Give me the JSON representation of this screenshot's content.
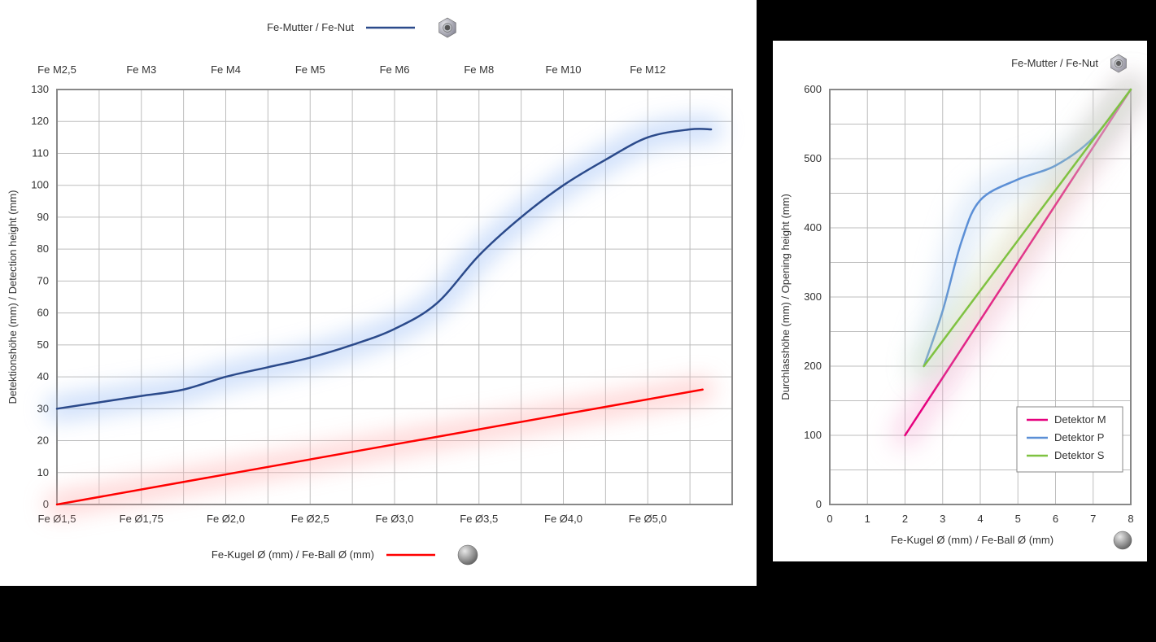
{
  "chart_left": {
    "type": "line",
    "top_legend_label": "Fe-Mutter / Fe-Nut",
    "bottom_legend_label": "Fe-Kugel Ø (mm) / Fe-Ball Ø (mm)",
    "y_axis_label": "Detektionshöhe (mm) / Detection height (mm)",
    "y_min": 0,
    "y_max": 130,
    "y_tick_step": 10,
    "top_x_labels": [
      "Fe M2,5",
      "Fe M3",
      "Fe M4",
      "Fe M5",
      "Fe M6",
      "Fe M8",
      "Fe M10",
      "Fe M12"
    ],
    "bottom_x_labels": [
      "Fe Ø1,5",
      "Fe Ø1,75",
      "Fe Ø2,0",
      "Fe Ø2,5",
      "Fe Ø3,0",
      "Fe Ø3,5",
      "Fe Ø4,0",
      "Fe Ø5,0"
    ],
    "grid_cols": 16,
    "background_color": "#ffffff",
    "grid_color": "#bdbdbd",
    "series": [
      {
        "name": "fe-nut",
        "color": "#2b4a8b",
        "glow_color": "#9bbef5",
        "width": 2.5,
        "points": [
          {
            "x": 0,
            "y": 30
          },
          {
            "x": 1,
            "y": 32
          },
          {
            "x": 2,
            "y": 34
          },
          {
            "x": 3,
            "y": 36
          },
          {
            "x": 4,
            "y": 40
          },
          {
            "x": 5,
            "y": 43
          },
          {
            "x": 6,
            "y": 46
          },
          {
            "x": 7,
            "y": 50
          },
          {
            "x": 8,
            "y": 55
          },
          {
            "x": 9,
            "y": 63
          },
          {
            "x": 10,
            "y": 78
          },
          {
            "x": 11,
            "y": 90
          },
          {
            "x": 12,
            "y": 100
          },
          {
            "x": 13,
            "y": 108
          },
          {
            "x": 14,
            "y": 115
          },
          {
            "x": 15,
            "y": 117.5
          },
          {
            "x": 15.5,
            "y": 117.5
          }
        ]
      },
      {
        "name": "fe-ball",
        "color": "#ff0000",
        "glow_color": "#ffb0b0",
        "width": 2.5,
        "points": [
          {
            "x": 0,
            "y": 0
          },
          {
            "x": 15.3,
            "y": 36
          }
        ]
      }
    ]
  },
  "chart_right": {
    "type": "line",
    "top_legend_label": "Fe-Mutter / Fe-Nut",
    "x_axis_label": "Fe-Kugel Ø (mm) / Fe-Ball Ø (mm)",
    "y_axis_label": "Durchlasshöhe (mm) / Opening height (mm)",
    "x_min": 0,
    "x_max": 8,
    "x_tick_step": 1,
    "y_min": 0,
    "y_max": 600,
    "y_tick_step": 100,
    "background_color": "#ffffff",
    "grid_color": "#bdbdbd",
    "legend_title": "",
    "legend_items": [
      {
        "label": "Detektor M",
        "color": "#e6007e"
      },
      {
        "label": "Detektor P",
        "color": "#5b8fd6"
      },
      {
        "label": "Detektor S",
        "color": "#7fc241"
      }
    ],
    "series": [
      {
        "name": "detektor-m",
        "color": "#e6007e",
        "glow_color": "#f5a6d0",
        "width": 2.5,
        "points": [
          {
            "x": 2,
            "y": 100
          },
          {
            "x": 8,
            "y": 600
          }
        ]
      },
      {
        "name": "detektor-p",
        "color": "#5b8fd6",
        "glow_color": "#b9d3f2",
        "width": 2.5,
        "points": [
          {
            "x": 2.5,
            "y": 200
          },
          {
            "x": 3,
            "y": 280
          },
          {
            "x": 3.5,
            "y": 380
          },
          {
            "x": 4,
            "y": 440
          },
          {
            "x": 5,
            "y": 470
          },
          {
            "x": 6,
            "y": 490
          },
          {
            "x": 7,
            "y": 530
          },
          {
            "x": 8,
            "y": 600
          }
        ]
      },
      {
        "name": "detektor-s",
        "color": "#7fc241",
        "glow_color": "#d2e8b0",
        "width": 2.5,
        "points": [
          {
            "x": 2.5,
            "y": 200
          },
          {
            "x": 8,
            "y": 600
          }
        ]
      }
    ]
  }
}
